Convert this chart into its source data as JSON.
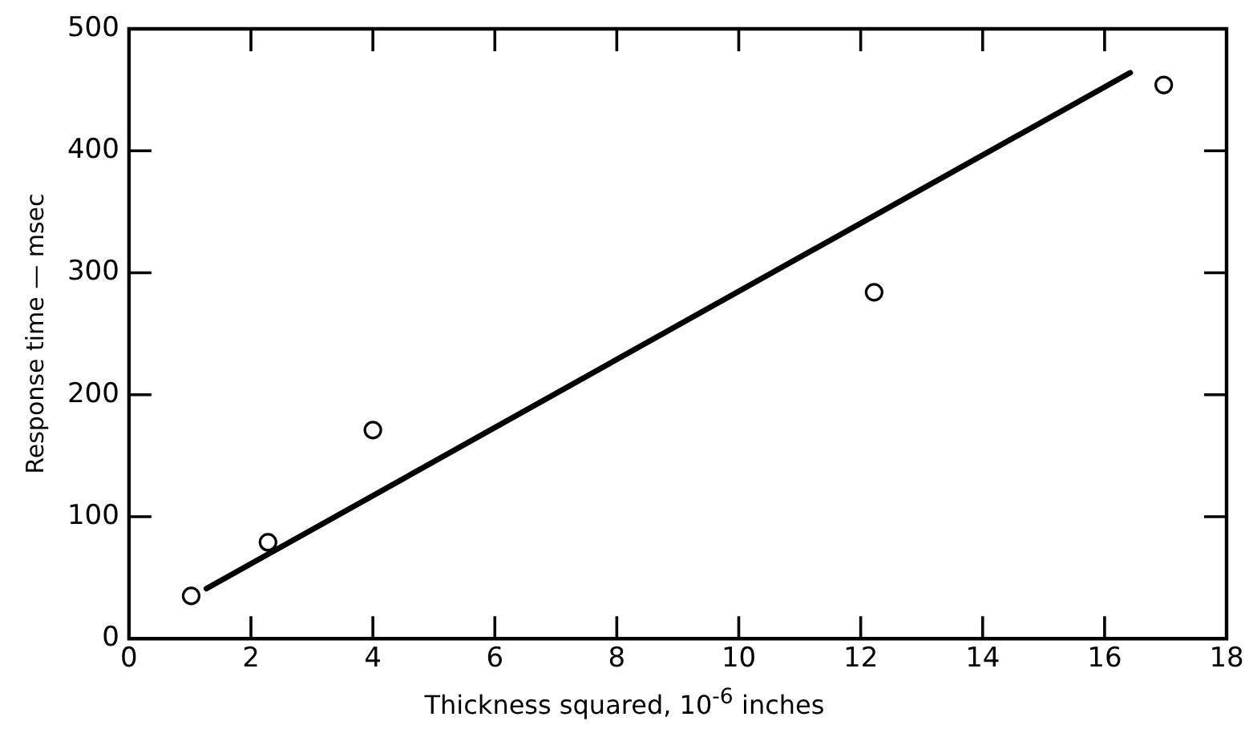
{
  "chart_data": {
    "type": "scatter",
    "xlabel": "Thickness squared, 10$^{-6}$ inches",
    "ylabel": "Response time — msec",
    "xlim": [
      0,
      18
    ],
    "xticks": [
      0,
      2,
      4,
      6,
      8,
      10,
      12,
      14,
      16,
      18
    ],
    "ylim": [
      0,
      500
    ],
    "yticks": [
      0,
      100,
      200,
      300,
      400,
      500
    ],
    "grid": false,
    "legend": false,
    "marker": "circle",
    "series": [
      {
        "type": "scatter",
        "color": "#000000",
        "x": [
          1.02,
          2.28,
          4.0,
          12.22,
          16.97
        ],
        "values": [
          35,
          79,
          171,
          284,
          454
        ]
      },
      {
        "type": "line",
        "color": "#000000",
        "marker": "none",
        "x": [
          1.27,
          16.42
        ],
        "values": [
          41,
          464
        ]
      }
    ]
  }
}
